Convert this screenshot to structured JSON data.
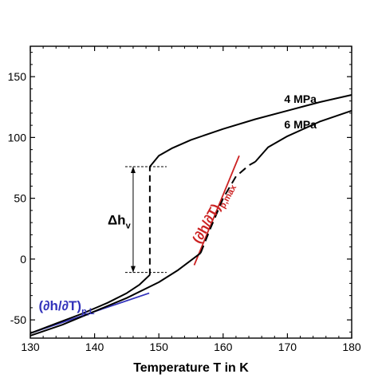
{
  "chart_data": {
    "type": "line",
    "xlabel": "Temperature T in K",
    "ylabel": "",
    "xlim": [
      130,
      180
    ],
    "ylim": [
      -65,
      175
    ],
    "xticks": [
      130,
      140,
      150,
      160,
      170,
      180
    ],
    "yticks": [
      -50,
      0,
      50,
      100,
      150
    ],
    "grid": false,
    "series": [
      {
        "name": "4 MPa",
        "color": "#000000",
        "style": "solid",
        "segments": [
          {
            "x": [
              130,
              134,
              138,
              142,
              145,
              147,
              148.6
            ],
            "y": [
              -61,
              -53,
              -45,
              -36,
              -28,
              -21,
              -13
            ]
          },
          {
            "x": [
              148.6,
              148.6
            ],
            "y": [
              -13,
              76
            ],
            "style": "dashed"
          },
          {
            "x": [
              148.6,
              150,
              152,
              155,
              160,
              165,
              170,
              175,
              180
            ],
            "y": [
              76,
              85,
              91,
              98,
              107,
              115,
              122,
              129,
              135
            ]
          }
        ]
      },
      {
        "name": "6 MPa",
        "color": "#000000",
        "style": "solid",
        "segments": [
          {
            "x": [
              130,
              135,
              140,
              145,
              150,
              153,
              155,
              156.5
            ],
            "y": [
              -63,
              -54,
              -43,
              -32,
              -19,
              -9,
              -1,
              5
            ]
          },
          {
            "x": [
              156.5,
              158,
              160,
              162,
              164,
              165
            ],
            "y": [
              5,
              25,
              50,
              68,
              77,
              80
            ],
            "style": "dashed"
          },
          {
            "x": [
              165,
              167,
              170,
              175,
              180
            ],
            "y": [
              80,
              92,
              101,
              113,
              122
            ]
          }
        ]
      }
    ],
    "annotations": [
      {
        "text_main": "Δh",
        "text_sub": "v",
        "type": "bracket",
        "x": 146,
        "y_range": [
          -11,
          76
        ],
        "color": "#000000"
      },
      {
        "text_main": "(∂h/∂T)",
        "text_sub": "p,L",
        "type": "tangent",
        "x": [
          130,
          148.5
        ],
        "y": [
          -61,
          -28
        ],
        "color": "#3333bb"
      },
      {
        "text_main": "(∂h/∂T)",
        "text_sub": "p,max",
        "type": "tangent",
        "x": [
          155.5,
          162.5
        ],
        "y": [
          -5,
          85
        ],
        "color": "#cc2222"
      }
    ]
  }
}
